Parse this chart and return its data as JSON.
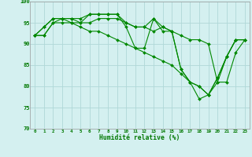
{
  "x": [
    0,
    1,
    2,
    3,
    4,
    5,
    6,
    7,
    8,
    9,
    10,
    11,
    12,
    13,
    14,
    15,
    16,
    17,
    18,
    19,
    20,
    21,
    22,
    23
  ],
  "line1": [
    92,
    94,
    96,
    96,
    96,
    95,
    97,
    97,
    97,
    97,
    94,
    89,
    89,
    96,
    93,
    93,
    84,
    81,
    77,
    78,
    82,
    87,
    91,
    91
  ],
  "line2": [
    92,
    94,
    96,
    96,
    96,
    96,
    97,
    97,
    97,
    97,
    95,
    94,
    94,
    96,
    94,
    93,
    84,
    81,
    80,
    78,
    82,
    87,
    91,
    91
  ],
  "line3": [
    92,
    92,
    95,
    96,
    95,
    95,
    95,
    96,
    96,
    96,
    95,
    94,
    94,
    93,
    94,
    93,
    92,
    91,
    91,
    90,
    81,
    81,
    88,
    91
  ],
  "line4": [
    92,
    92,
    95,
    95,
    95,
    94,
    93,
    93,
    92,
    91,
    90,
    89,
    88,
    87,
    86,
    85,
    83,
    81,
    80,
    78,
    81,
    87,
    91,
    91
  ],
  "line_color": "#008800",
  "bg_color": "#d4f0f0",
  "grid_color": "#b0d8d8",
  "xlabel": "Humidité relative (%)",
  "xlabel_color": "#007700",
  "tick_color": "#007700",
  "ylim": [
    70,
    100
  ],
  "yticks": [
    70,
    75,
    80,
    85,
    90,
    95,
    100
  ],
  "xticks": [
    0,
    1,
    2,
    3,
    4,
    5,
    6,
    7,
    8,
    9,
    10,
    11,
    12,
    13,
    14,
    15,
    16,
    17,
    18,
    19,
    20,
    21,
    22,
    23
  ]
}
